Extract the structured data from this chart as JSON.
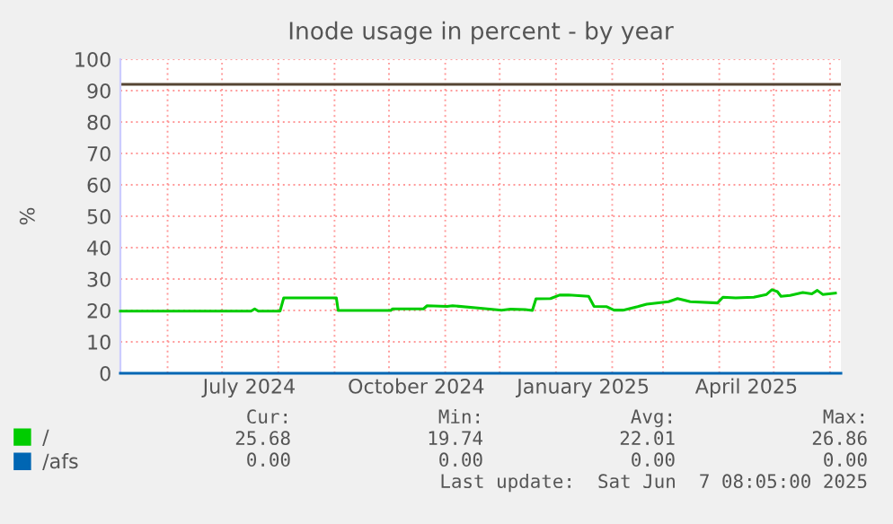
{
  "chart_data": {
    "type": "line",
    "title": "Inode usage in percent - by year",
    "ylabel": "%",
    "xlim": [
      "2024-05-06",
      "2025-06-07"
    ],
    "xticks": [
      {
        "value": "2024-06-01",
        "label": null
      },
      {
        "value": "2024-07-01",
        "label": null
      },
      {
        "value": "2024-07-16",
        "label": "July 2024"
      },
      {
        "value": "2024-08-01",
        "label": null
      },
      {
        "value": "2024-09-01",
        "label": null
      },
      {
        "value": "2024-10-01",
        "label": null
      },
      {
        "value": "2024-10-16",
        "label": "October 2024"
      },
      {
        "value": "2024-11-01",
        "label": null
      },
      {
        "value": "2024-12-01",
        "label": null
      },
      {
        "value": "2025-01-01",
        "label": null
      },
      {
        "value": "2025-01-16",
        "label": "January 2025"
      },
      {
        "value": "2025-02-01",
        "label": null
      },
      {
        "value": "2025-03-01",
        "label": null
      },
      {
        "value": "2025-04-01",
        "label": null
      },
      {
        "value": "2025-04-16",
        "label": "April 2025"
      },
      {
        "value": "2025-05-01",
        "label": null
      },
      {
        "value": "2025-06-01",
        "label": null
      }
    ],
    "ylim": [
      0,
      100
    ],
    "yticks": [
      0,
      10,
      20,
      30,
      40,
      50,
      60,
      70,
      80,
      90,
      100
    ],
    "grid": true,
    "legend": "bottom",
    "marker": "none",
    "line_style": "solid",
    "ref_lines": [
      {
        "axis": "y",
        "value": 92,
        "color": "#554433"
      }
    ],
    "series": [
      {
        "name": "/",
        "color": "#00cc00",
        "x": [
          "2024-05-06",
          "2024-07-17",
          "2024-07-19",
          "2024-07-21",
          "2024-08-02",
          "2024-08-04",
          "2024-09-02",
          "2024-09-03",
          "2024-10-02",
          "2024-10-03",
          "2024-10-20",
          "2024-10-22",
          "2024-11-02",
          "2024-11-05",
          "2024-11-19",
          "2024-12-02",
          "2024-12-07",
          "2024-12-15",
          "2024-12-19",
          "2024-12-21",
          "2024-12-29",
          "2025-01-03",
          "2025-01-08",
          "2025-01-19",
          "2025-01-22",
          "2025-01-29",
          "2025-02-02",
          "2025-02-07",
          "2025-02-15",
          "2025-02-20",
          "2025-03-04",
          "2025-03-09",
          "2025-03-16",
          "2025-03-31",
          "2025-04-03",
          "2025-04-10",
          "2025-04-20",
          "2025-04-27",
          "2025-04-30",
          "2025-05-03",
          "2025-05-05",
          "2025-05-10",
          "2025-05-17",
          "2025-05-22",
          "2025-05-25",
          "2025-05-28",
          "2025-06-04"
        ],
        "values": [
          19.8,
          19.8,
          20.5,
          19.8,
          19.8,
          24,
          24,
          20,
          20,
          20.5,
          20.5,
          21.5,
          21.3,
          21.5,
          20.8,
          20.1,
          20.4,
          20.3,
          20,
          23.7,
          23.8,
          24.9,
          24.9,
          24.5,
          21.3,
          21.2,
          20.1,
          20.1,
          21.2,
          22,
          22.8,
          23.8,
          22.8,
          22.4,
          24.2,
          24,
          24.2,
          25.1,
          26.6,
          26,
          24.5,
          24.8,
          25.7,
          25.3,
          26.4,
          25.1,
          25.5
        ]
      },
      {
        "name": "/afs",
        "color": "#0066b3",
        "x": [
          "2024-05-06",
          "2025-06-07"
        ],
        "values": [
          0,
          0
        ]
      }
    ],
    "annotations": [
      "Cur:",
      "Min:",
      "Avg:",
      "Max:",
      "25.68",
      "19.74",
      "22.01",
      "26.86",
      "0.00",
      "0.00",
      "0.00",
      "0.00",
      "Last update:  Sat Jun  7 08:05:00 2025"
    ]
  }
}
